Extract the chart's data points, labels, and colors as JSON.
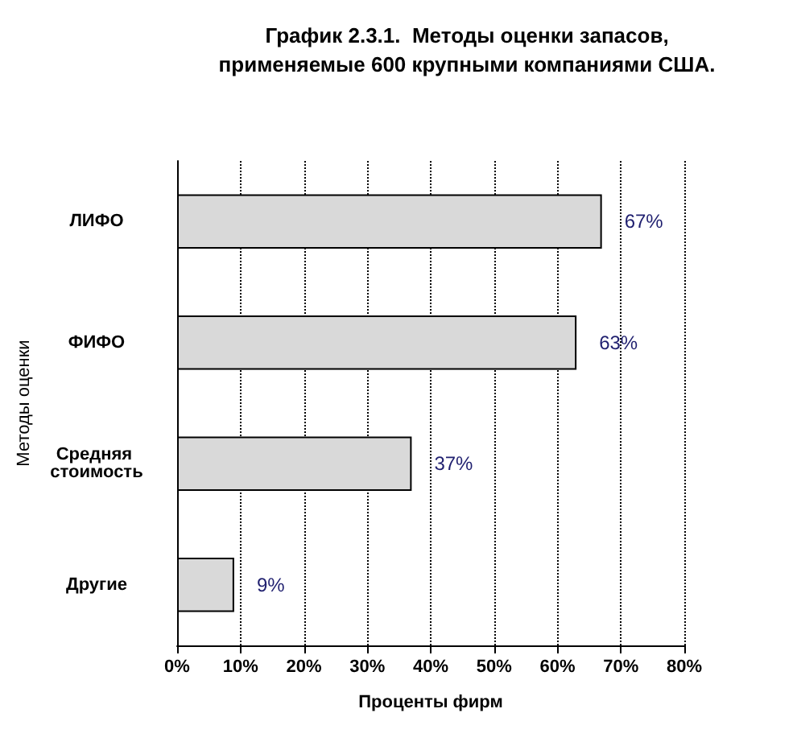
{
  "chart_data": {
    "type": "bar",
    "orientation": "horizontal",
    "title": "График 2.3.1.  Методы оценки запасов,\nприменяемые 600 крупными компаниями США.",
    "xlabel": "Проценты фирм",
    "ylabel": "Методы оценки",
    "categories": [
      "ЛИФО",
      "ФИФО",
      "Средняя стоимость",
      "Другие"
    ],
    "values": [
      67,
      63,
      37,
      9
    ],
    "color": "#d9d9d9",
    "value_labels": [
      "67%",
      "63%",
      "37%",
      "9%"
    ],
    "xlim": [
      0,
      80
    ],
    "xticks": [
      {
        "value": 0,
        "label": "0%"
      },
      {
        "value": 10,
        "label": "10%"
      },
      {
        "value": 20,
        "label": "20%"
      },
      {
        "value": 30,
        "label": "30%"
      },
      {
        "value": 40,
        "label": "40%"
      },
      {
        "value": 50,
        "label": "50%"
      },
      {
        "value": 60,
        "label": "60%"
      },
      {
        "value": 70,
        "label": "70%"
      },
      {
        "value": 80,
        "label": "80%"
      }
    ],
    "grid": "x"
  }
}
